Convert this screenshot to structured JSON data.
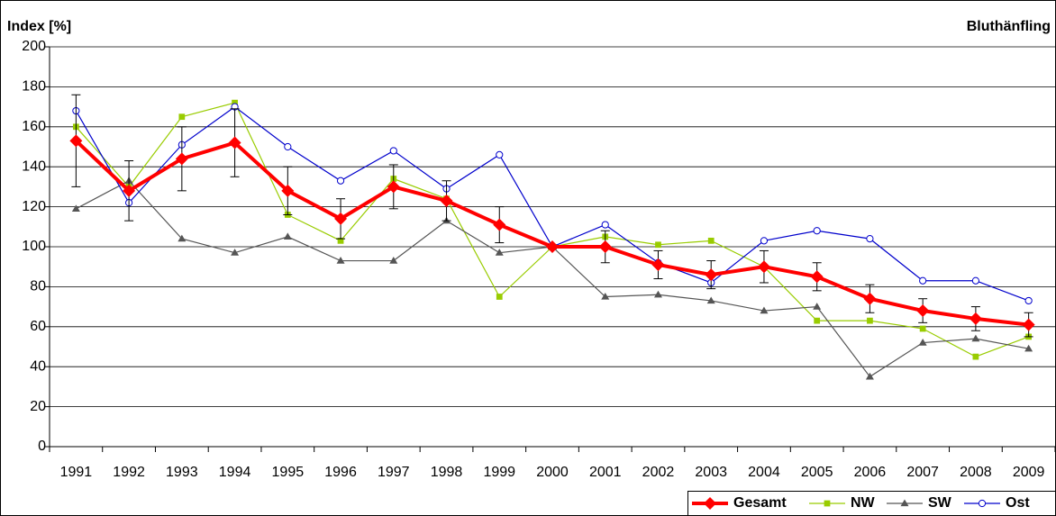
{
  "chart_data": {
    "type": "line",
    "y_label": "Index [%]",
    "title": "Bluthänfling",
    "categories": [
      "1991",
      "1992",
      "1993",
      "1994",
      "1995",
      "1996",
      "1997",
      "1998",
      "1999",
      "2000",
      "2001",
      "2002",
      "2003",
      "2004",
      "2005",
      "2006",
      "2007",
      "2008",
      "2009"
    ],
    "series": [
      {
        "name": "Gesamt",
        "color": "#ff0000",
        "marker": "diamond",
        "values": [
          153,
          128,
          144,
          152,
          128,
          114,
          130,
          123,
          111,
          100,
          100,
          91,
          86,
          90,
          85,
          74,
          68,
          64,
          61
        ],
        "errors": [
          23,
          15,
          16,
          17,
          12,
          10,
          11,
          10,
          9,
          1,
          8,
          7,
          7,
          8,
          7,
          7,
          6,
          6,
          6
        ]
      },
      {
        "name": "NW",
        "color": "#99cc00",
        "marker": "square",
        "values": [
          160,
          130,
          165,
          172,
          116,
          103,
          134,
          124,
          75,
          100,
          105,
          101,
          103,
          90,
          63,
          63,
          59,
          45,
          55
        ]
      },
      {
        "name": "SW",
        "color": "#555555",
        "marker": "triangle",
        "values": [
          119,
          133,
          104,
          97,
          105,
          93,
          93,
          113,
          97,
          100,
          75,
          76,
          73,
          68,
          70,
          35,
          52,
          54,
          49
        ]
      },
      {
        "name": "Ost",
        "color": "#0000cc",
        "marker": "circle",
        "values": [
          168,
          122,
          151,
          170,
          150,
          133,
          148,
          129,
          146,
          100,
          111,
          92,
          82,
          103,
          108,
          104,
          83,
          83,
          73
        ]
      }
    ],
    "ylim": [
      0,
      200
    ],
    "yticks": [
      0,
      20,
      40,
      60,
      80,
      100,
      120,
      140,
      160,
      180,
      200
    ],
    "grid": true,
    "legend": "bottom-right"
  }
}
